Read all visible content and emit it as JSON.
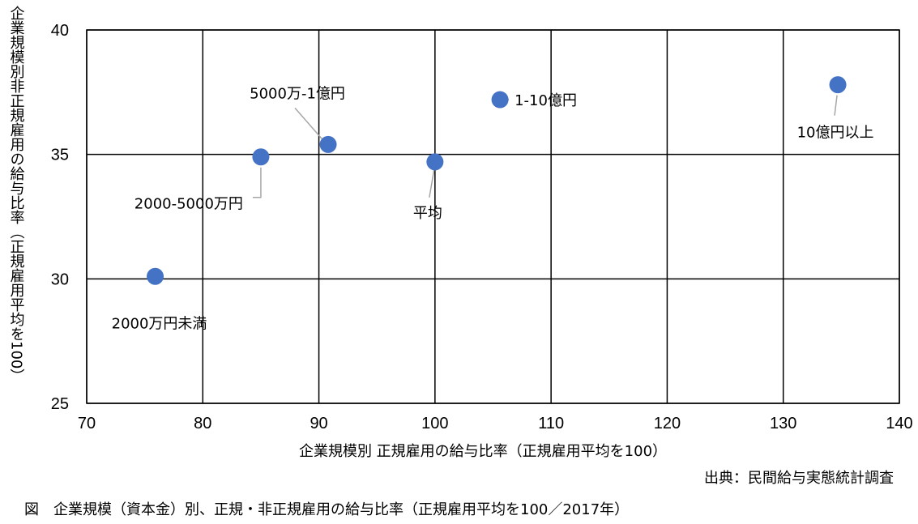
{
  "chart_data": {
    "type": "scatter",
    "xlabel": "企業規模別 正規雇用の給与比率（正規雇用平均を100）",
    "ylabel": "企業規模別非正規雇用の給与比率（正規雇用平均を100）",
    "xlim": [
      70,
      140
    ],
    "ylim": [
      25,
      40
    ],
    "xticks": [
      70,
      80,
      90,
      100,
      110,
      120,
      130,
      140
    ],
    "yticks": [
      25,
      30,
      35,
      40
    ],
    "grid": true,
    "marker_color": "#4472c4",
    "points": [
      {
        "label": "2000万円未満",
        "x": 75.9,
        "y": 30.1
      },
      {
        "label": "2000-5000万円",
        "x": 85.0,
        "y": 34.9
      },
      {
        "label": "5000万-1億円",
        "x": 90.8,
        "y": 35.4
      },
      {
        "label": "平均",
        "x": 100.0,
        "y": 34.7
      },
      {
        "label": "1-10億円",
        "x": 105.6,
        "y": 37.2
      },
      {
        "label": "10億円以上",
        "x": 134.7,
        "y": 37.8
      }
    ]
  },
  "source": "出典：民間給与実態統計調査",
  "caption": "図　企業規模（資本金）別、正規・非正規雇用の給与比率（正規雇用平均を100／2017年）"
}
